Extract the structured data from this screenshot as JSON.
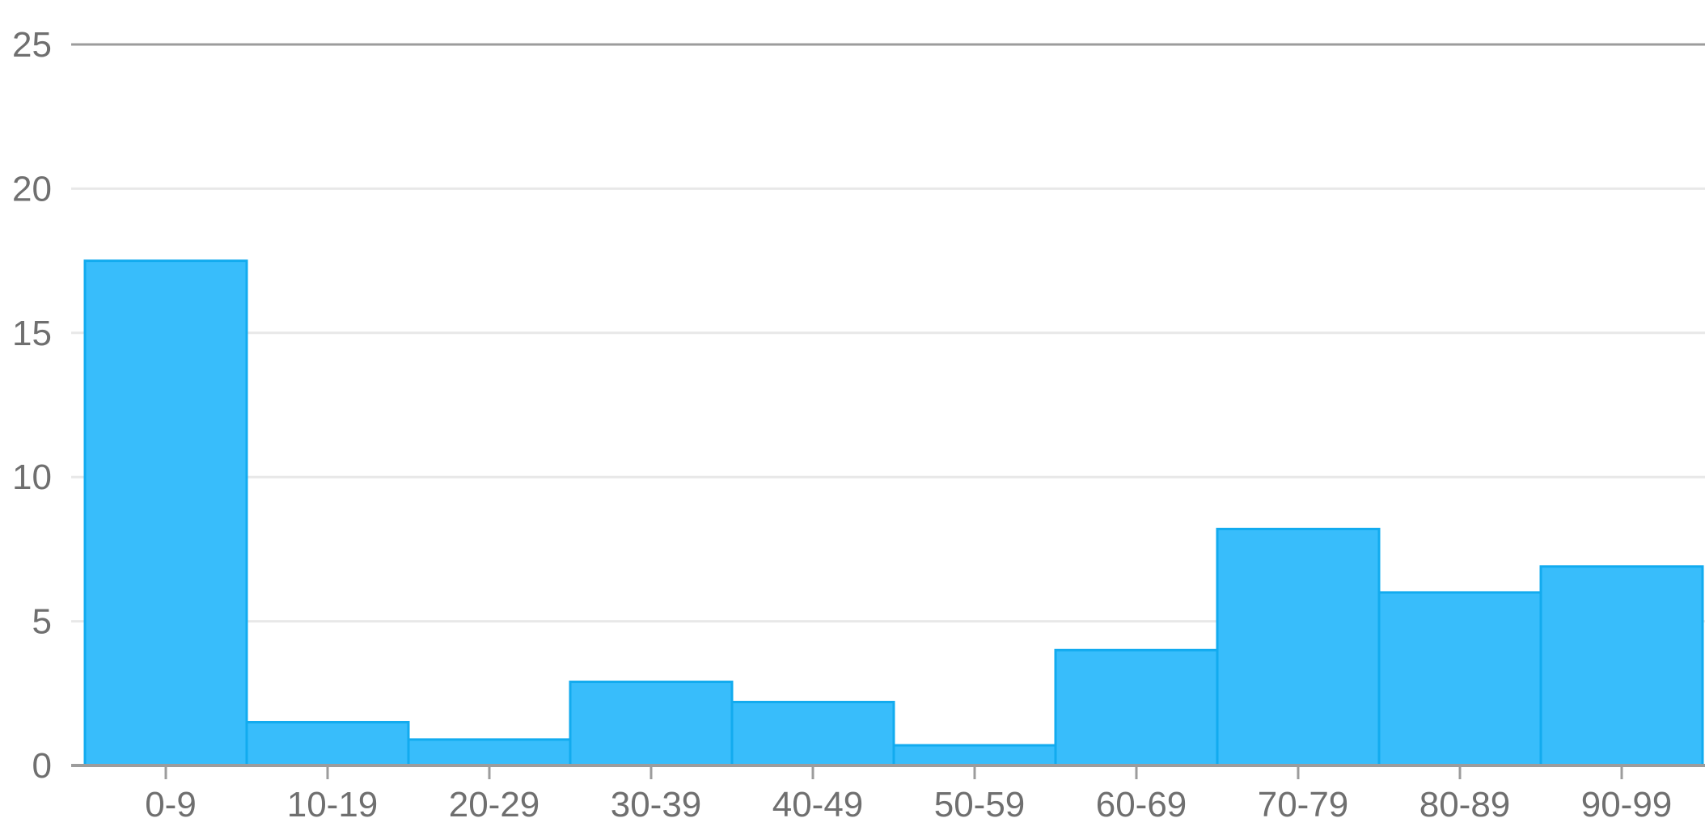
{
  "chart_data": {
    "type": "bar",
    "title": "",
    "xlabel": "",
    "ylabel": "",
    "categories": [
      "0-9",
      "10-19",
      "20-29",
      "30-39",
      "40-49",
      "50-59",
      "60-69",
      "70-79",
      "80-89",
      "90-99"
    ],
    "values": [
      17.5,
      1.5,
      0.9,
      2.9,
      2.2,
      0.7,
      4.0,
      8.2,
      6.0,
      6.9
    ],
    "ylim": [
      0,
      25
    ],
    "yticks": [
      0,
      5,
      10,
      15,
      20,
      25
    ],
    "grid": true,
    "colors": {
      "bar_fill": "#38bdfb",
      "bar_stroke": "#12abef",
      "grid": "#e8e8e8",
      "axis": "#9c9c9c",
      "tick_text": "#6f6f6f"
    }
  }
}
